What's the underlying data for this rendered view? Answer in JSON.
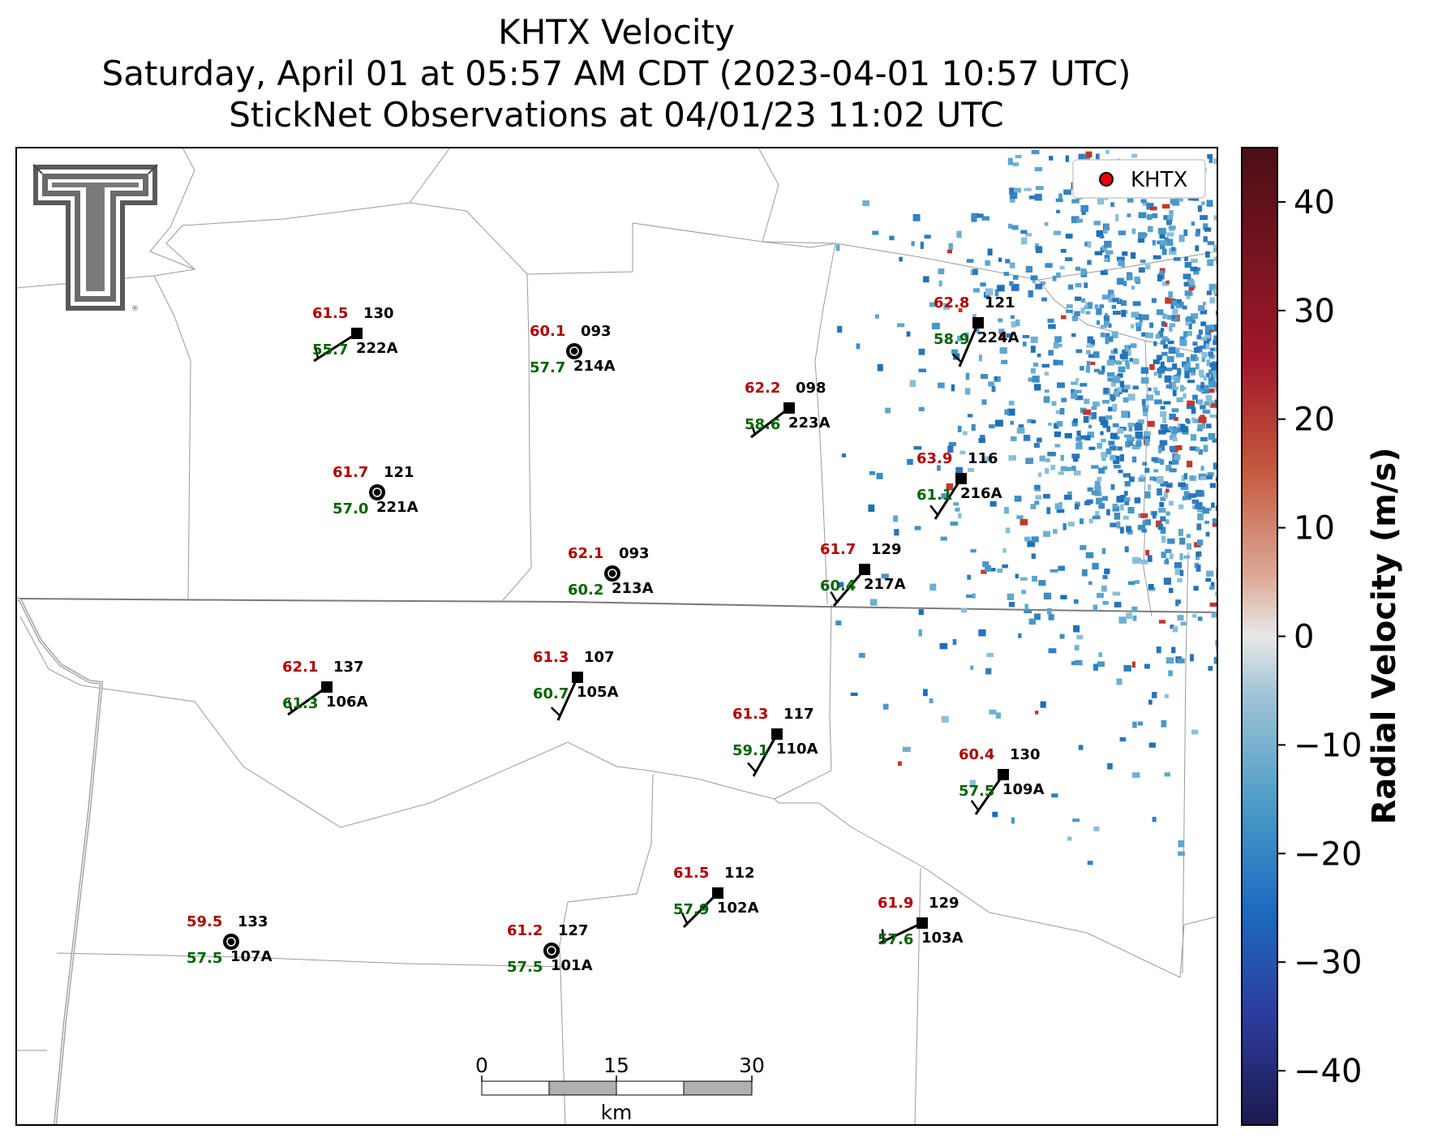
{
  "header": {
    "title": "KHTX Velocity",
    "subtitle": "Saturday, April 01 at 05:57 AM CDT (2023-04-01 10:57 UTC)",
    "obs_line": "StickNet Observations at 04/01/23 11:02 UTC"
  },
  "legend": {
    "radar_label": "KHTX",
    "marker_color": "#e8000b"
  },
  "colorbar": {
    "label": "Radial Velocity (m/s)",
    "ticks": [
      "40",
      "30",
      "20",
      "10",
      "0",
      "−10",
      "−20",
      "−30",
      "−40"
    ],
    "tick_values": [
      40,
      30,
      20,
      10,
      0,
      -10,
      -20,
      -30,
      -40
    ],
    "range": [
      -45,
      45
    ],
    "colors": [
      "#1c1a4c",
      "#2d3b9c",
      "#1c6bc0",
      "#4d9cc7",
      "#9fc4d6",
      "#e8e8e8",
      "#ddaa98",
      "#c45a3e",
      "#a3182a",
      "#4a0f16"
    ]
  },
  "scalebar": {
    "ticks": [
      "0",
      "15",
      "30"
    ],
    "unit": "km"
  },
  "colors": {
    "temp": "#b00000",
    "dew": "#006400",
    "id": "#000000"
  },
  "stations": [
    {
      "id": "222A",
      "temp": "61.5",
      "dew": "55.7",
      "dir": "130"
    },
    {
      "id": "214A",
      "temp": "60.1",
      "dew": "57.7",
      "dir": "093"
    },
    {
      "id": "223A",
      "temp": "62.2",
      "dew": "58.6",
      "dir": "098"
    },
    {
      "id": "224A",
      "temp": "62.8",
      "dew": "58.9",
      "dir": "121"
    },
    {
      "id": "221A",
      "temp": "61.7",
      "dew": "57.0",
      "dir": "121"
    },
    {
      "id": "216A",
      "temp": "63.9",
      "dew": "61.1",
      "dir": "116"
    },
    {
      "id": "213A",
      "temp": "62.1",
      "dew": "60.2",
      "dir": "093"
    },
    {
      "id": "217A",
      "temp": "61.7",
      "dew": "60.4",
      "dir": "129"
    },
    {
      "id": "106A",
      "temp": "62.1",
      "dew": "61.3",
      "dir": "137"
    },
    {
      "id": "105A",
      "temp": "61.3",
      "dew": "60.7",
      "dir": "107"
    },
    {
      "id": "110A",
      "temp": "61.3",
      "dew": "59.1",
      "dir": "117"
    },
    {
      "id": "109A",
      "temp": "60.4",
      "dew": "57.5",
      "dir": "130"
    },
    {
      "id": "102A",
      "temp": "61.5",
      "dew": "57.9",
      "dir": "112"
    },
    {
      "id": "103A",
      "temp": "61.9",
      "dew": "57.6",
      "dir": "129"
    },
    {
      "id": "107A",
      "temp": "59.5",
      "dew": "57.5",
      "dir": "133"
    },
    {
      "id": "101A",
      "temp": "61.2",
      "dew": "57.5",
      "dir": "127"
    }
  ]
}
